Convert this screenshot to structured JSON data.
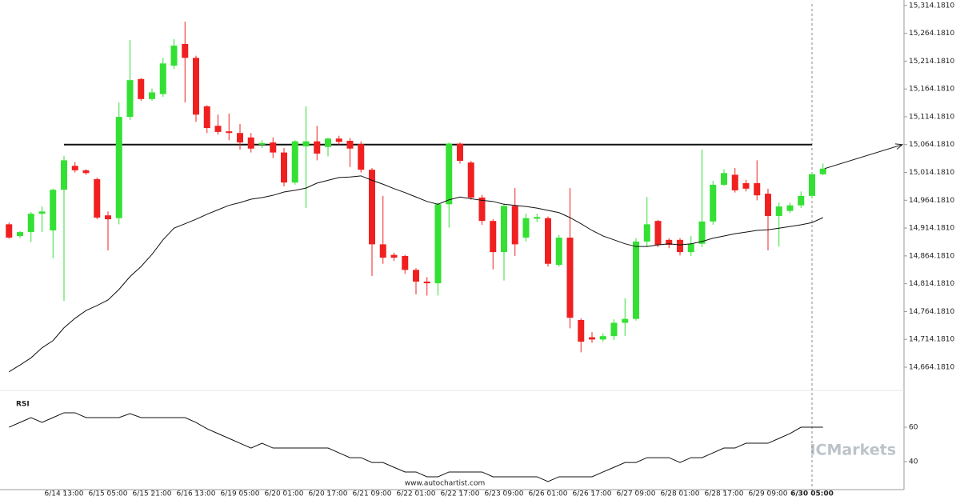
{
  "chart_data": [
    {
      "type": "candlestick",
      "categories": [
        null,
        null,
        null,
        null,
        null,
        "6/14 13:00",
        null,
        null,
        null,
        "6/15 05:00",
        null,
        null,
        null,
        "6/15 21:00",
        null,
        null,
        null,
        "6/16 13:00",
        null,
        null,
        null,
        "6/19 05:00",
        null,
        null,
        null,
        "6/20 01:00",
        null,
        null,
        null,
        "6/20 17:00",
        null,
        null,
        null,
        "6/21 09:00",
        null,
        null,
        null,
        "6/22 01:00",
        null,
        null,
        null,
        "6/22 17:00",
        null,
        null,
        null,
        "6/23 09:00",
        null,
        null,
        null,
        "6/26 01:00",
        null,
        null,
        null,
        "6/26 17:00",
        null,
        null,
        null,
        "6/27 09:00",
        null,
        null,
        null,
        "6/28 01:00",
        null,
        null,
        null,
        "6/28 17:00",
        null,
        null,
        null,
        "6/29 09:00",
        null,
        null,
        null,
        "6/30 05:00",
        null
      ],
      "open": [
        14921,
        14900,
        14907,
        14940,
        14910,
        14983,
        15026,
        15018,
        15002,
        14937,
        14932,
        15114,
        15182,
        15146,
        15155,
        15206,
        15245,
        15220,
        15133,
        15098,
        15088,
        15085,
        15077,
        15064,
        15068,
        15050,
        14996,
        15061,
        15070,
        15060,
        15075,
        15071,
        15065,
        15019,
        14885,
        14866,
        14864,
        14839,
        14818,
        14815,
        14957,
        15066,
        15032,
        14969,
        14927,
        14871,
        14954,
        14897,
        14931,
        14932,
        14848,
        14897,
        14749,
        14718,
        14714,
        14720,
        14744,
        14751,
        14890,
        14927,
        14893,
        14893,
        14871,
        14886,
        14926,
        14992,
        15010,
        14995,
        14995,
        14976,
        14936,
        14945,
        14955,
        14972,
        15011
      ],
      "high": [
        14924,
        14909,
        14943,
        14953,
        14985,
        15044,
        15033,
        15020,
        15005,
        14944,
        15140,
        15252,
        15184,
        15165,
        15220,
        15254,
        15285,
        15224,
        15135,
        15118,
        15120,
        15101,
        15085,
        15072,
        15077,
        15058,
        15072,
        15133,
        15098,
        15077,
        15080,
        15076,
        15070,
        15022,
        14972,
        14870,
        14866,
        14842,
        14826,
        14960,
        15068,
        15068,
        15035,
        14974,
        14930,
        14958,
        14986,
        14940,
        14940,
        14935,
        14902,
        14986,
        14752,
        14727,
        14725,
        14750,
        14788,
        14896,
        14970,
        14929,
        14896,
        14896,
        14900,
        15055,
        14999,
        15020,
        15022,
        15001,
        15036,
        14985,
        14960,
        14960,
        14980,
        15014,
        15030
      ],
      "low": [
        14895,
        14896,
        14889,
        14907,
        14860,
        14783,
        15014,
        15010,
        14930,
        14874,
        14921,
        15108,
        15143,
        15143,
        15150,
        15200,
        15140,
        15105,
        15085,
        15082,
        15072,
        15055,
        15050,
        15058,
        15040,
        14989,
        14992,
        14950,
        15036,
        15043,
        15064,
        15024,
        15014,
        14828,
        14850,
        14855,
        14832,
        14795,
        14793,
        14793,
        14915,
        15030,
        14965,
        14920,
        14840,
        14820,
        14864,
        14890,
        14925,
        14845,
        14845,
        14734,
        14691,
        14708,
        14710,
        14713,
        14720,
        14748,
        14880,
        14880,
        14878,
        14865,
        14864,
        14880,
        14920,
        14990,
        14978,
        14980,
        14964,
        14874,
        14881,
        14941,
        14950,
        14968,
        15009
      ],
      "close": [
        14897,
        14907,
        14940,
        14944,
        14983,
        15036,
        15018,
        15013,
        14933,
        14930,
        15114,
        15180,
        15146,
        15158,
        15210,
        15242,
        15220,
        15118,
        15094,
        15087,
        15085,
        15068,
        15057,
        15067,
        15050,
        14996,
        15070,
        15070,
        15048,
        15075,
        15069,
        15057,
        15019,
        14885,
        14861,
        14861,
        14839,
        14818,
        14815,
        14957,
        15066,
        15035,
        14969,
        14927,
        14871,
        14954,
        14885,
        14932,
        14934,
        14850,
        14897,
        14753,
        14710,
        14714,
        14720,
        14744,
        14751,
        14890,
        14921,
        14884,
        14884,
        14871,
        14886,
        14926,
        14992,
        15013,
        14982,
        14985,
        14973,
        14936,
        14953,
        14955,
        14972,
        15011,
        15021
      ],
      "moving_average": [
        14656,
        14668,
        14681,
        14699,
        14712,
        14735,
        14752,
        14766,
        14775,
        14785,
        14804,
        14827,
        14845,
        14867,
        14893,
        14914,
        14922,
        14930,
        14939,
        14947,
        14955,
        14960,
        14966,
        14969,
        14973,
        14979,
        14982,
        14986,
        14995,
        15000,
        15005,
        15006,
        15008,
        15000,
        14993,
        14985,
        14978,
        14970,
        14962,
        14957,
        14965,
        14970,
        14967,
        14964,
        14962,
        14957,
        14955,
        14953,
        14950,
        14946,
        14942,
        14933,
        14922,
        14910,
        14900,
        14893,
        14886,
        14881,
        14881,
        14884,
        14886,
        14884,
        14886,
        14890,
        14896,
        14900,
        14904,
        14907,
        14910,
        14911,
        14914,
        14917,
        14920,
        14924,
        14933
      ],
      "up_color": "#33e033",
      "down_color": "#f02020",
      "level": 15064.181,
      "ylim": [
        14634,
        15324
      ],
      "yticks": [
        {
          "value": 14664.181,
          "label": "14,664.1810"
        },
        {
          "value": 14714.181,
          "label": "14,714.1810"
        },
        {
          "value": 14764.181,
          "label": "14,764.1810"
        },
        {
          "value": 14814.181,
          "label": "14,814.1810"
        },
        {
          "value": 14864.181,
          "label": "14,864.1810"
        },
        {
          "value": 14914.181,
          "label": "14,914.1810"
        },
        {
          "value": 14964.181,
          "label": "14,964.1810"
        },
        {
          "value": 15014.181,
          "label": "15,014.1810"
        },
        {
          "value": 15064.181,
          "label": "15,064.1810"
        },
        {
          "value": 15114.181,
          "label": "15,114.1810"
        },
        {
          "value": 15164.181,
          "label": "15,164.1810"
        },
        {
          "value": 15214.181,
          "label": "15,214.1810"
        },
        {
          "value": 15264.181,
          "label": "15,264.1810"
        },
        {
          "value": 15314.181,
          "label": "15,314.1810"
        }
      ],
      "source": "www.autochartist.com",
      "watermark": "ICMarkets"
    },
    {
      "type": "line",
      "title": "RSI",
      "values": [
        60,
        62.8,
        65.6,
        62.8,
        65.6,
        68.4,
        68.4,
        65.6,
        65.6,
        65.6,
        65.6,
        67.9,
        65.6,
        65.6,
        65.6,
        65.6,
        65.6,
        62.8,
        59.1,
        56.3,
        53.5,
        50.7,
        47.9,
        50.7,
        47.9,
        47.9,
        47.9,
        47.9,
        47.9,
        47.9,
        45.1,
        42.3,
        42.3,
        39.5,
        39.5,
        36.7,
        34,
        34,
        31.2,
        31.2,
        34,
        34,
        34,
        34,
        31.2,
        31.2,
        31.2,
        31.2,
        31.2,
        28.4,
        31.2,
        31.2,
        31.2,
        31.2,
        34,
        36.7,
        39.5,
        39.5,
        42.3,
        42.3,
        42.3,
        39.5,
        42.3,
        42.3,
        45.1,
        47.9,
        47.9,
        50.7,
        50.7,
        50.7,
        53.5,
        56.3,
        60,
        60,
        60
      ],
      "color": "#111111",
      "ylim": [
        27,
        73.5
      ],
      "yticks": [
        40,
        60
      ]
    }
  ]
}
